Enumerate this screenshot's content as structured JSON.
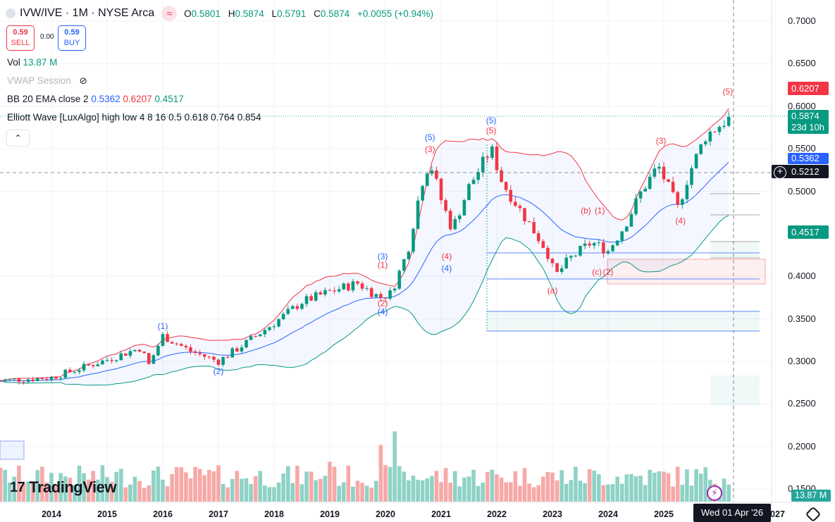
{
  "header": {
    "symbol": "IVW/IVE · 1M · NYSE Arca",
    "open_label": "O",
    "open": "0.5801",
    "high_label": "H",
    "high": "0.5874",
    "low_label": "L",
    "low": "0.5791",
    "close_label": "C",
    "close": "0.5874",
    "change": "+0.0055 (+0.94%)"
  },
  "trade": {
    "sell_price": "0.59",
    "sell_label": "SELL",
    "spread": "0.00",
    "buy_price": "0.59",
    "buy_label": "BUY"
  },
  "legend": {
    "vol_label": "Vol",
    "vol_value": "13.87 M",
    "vwap_label": "VWAP Session",
    "bb_label": "BB 20 EMA close 2",
    "bb_basis": "0.5362",
    "bb_upper": "0.6207",
    "bb_lower": "0.4517",
    "elliott_label": "Elliott Wave [LuxAlgo] high low 4 8 16 0.5 0.618 0.764 0.854"
  },
  "price_axis": {
    "ticks": [
      "0.7000",
      "0.6500",
      "0.6000",
      "0.5500",
      "0.5000",
      "0.4000",
      "0.3500",
      "0.3000",
      "0.2500",
      "0.2000",
      "0.1500"
    ],
    "tags": {
      "upper": "0.6207",
      "last": "0.5874",
      "countdown": "23d 10h",
      "basis": "0.5362",
      "crosshair": "0.5212",
      "lower": "0.4517",
      "volume": "13.87 M"
    }
  },
  "time_axis": {
    "ticks": [
      "2014",
      "2015",
      "2016",
      "2017",
      "2018",
      "2019",
      "2020",
      "2021",
      "2022",
      "2023",
      "2024",
      "2025",
      "2027"
    ],
    "crosshair": "Wed 01 Apr '26"
  },
  "brand": "TradingView",
  "colors": {
    "up": "#089981",
    "down": "#f23645",
    "basis": "#2962ff",
    "upper": "#f23645",
    "lower": "#089981",
    "vol_up": "#8fd2c6",
    "vol_down": "#f7a9a7"
  },
  "chart_data": {
    "type": "candlestick",
    "interval": "1M",
    "approx_close_anchors": [
      [
        "2013.0",
        0.277
      ],
      [
        "2014.0",
        0.281
      ],
      [
        "2015.0",
        0.302
      ],
      [
        "2015.6",
        0.316
      ],
      [
        "2015.75",
        0.296
      ],
      [
        "2016.0",
        0.33
      ],
      [
        "2016.5",
        0.312
      ],
      [
        "2017.0",
        0.3
      ],
      [
        "2017.5",
        0.322
      ],
      [
        "2018.0",
        0.345
      ],
      [
        "2018.5",
        0.37
      ],
      [
        "2019.0",
        0.382
      ],
      [
        "2019.5",
        0.392
      ],
      [
        "2019.9",
        0.375
      ],
      [
        "2020.1",
        0.38
      ],
      [
        "2020.4",
        0.43
      ],
      [
        "2020.65",
        0.51
      ],
      [
        "2020.8",
        0.535
      ],
      [
        "2021.0",
        0.49
      ],
      [
        "2021.2",
        0.455
      ],
      [
        "2021.5",
        0.505
      ],
      [
        "2021.9",
        0.55
      ],
      [
        "2022.1",
        0.51
      ],
      [
        "2022.5",
        0.47
      ],
      [
        "2022.9",
        0.43
      ],
      [
        "2023.05",
        0.4
      ],
      [
        "2023.3",
        0.42
      ],
      [
        "2023.7",
        0.44
      ],
      [
        "2024.0",
        0.43
      ],
      [
        "2024.3",
        0.46
      ],
      [
        "2024.6",
        0.5
      ],
      [
        "2024.9",
        0.53
      ],
      [
        "2025.25",
        0.48
      ],
      [
        "2025.45",
        0.52
      ],
      [
        "2025.75",
        0.565
      ],
      [
        "2026.2",
        0.5874
      ]
    ],
    "waves": [
      {
        "label": "(1)",
        "date": 2016.0,
        "price": 0.338,
        "color": "#2962ff"
      },
      {
        "label": "(2)",
        "date": 2017.0,
        "price": 0.285,
        "color": "#2962ff"
      },
      {
        "label": "(3)",
        "date": 2019.95,
        "price": 0.42,
        "color": "#2962ff"
      },
      {
        "label": "(1)",
        "date": 2019.95,
        "price": 0.41,
        "color": "#f23645"
      },
      {
        "label": "(2)",
        "date": 2019.95,
        "price": 0.365,
        "color": "#f23645"
      },
      {
        "label": "(4)",
        "date": 2019.95,
        "price": 0.355,
        "color": "#2962ff"
      },
      {
        "label": "(5)",
        "date": 2020.8,
        "price": 0.56,
        "color": "#2962ff"
      },
      {
        "label": "(3)",
        "date": 2020.8,
        "price": 0.546,
        "color": "#f23645"
      },
      {
        "label": "(4)",
        "date": 2021.1,
        "price": 0.42,
        "color": "#f23645"
      },
      {
        "label": "(4)",
        "date": 2021.1,
        "price": 0.406,
        "color": "#2962ff"
      },
      {
        "label": "(5)",
        "date": 2021.9,
        "price": 0.58,
        "color": "#2962ff"
      },
      {
        "label": "(5)",
        "date": 2021.9,
        "price": 0.568,
        "color": "#f23645"
      },
      {
        "label": "(a)",
        "date": 2023.0,
        "price": 0.38,
        "color": "#f23645"
      },
      {
        "label": "(b)",
        "date": 2023.6,
        "price": 0.474,
        "color": "#f23645"
      },
      {
        "label": "(1)",
        "date": 2023.85,
        "price": 0.474,
        "color": "#f23645"
      },
      {
        "label": "(c)",
        "date": 2023.8,
        "price": 0.402,
        "color": "#f23645"
      },
      {
        "label": "(2)",
        "date": 2024.0,
        "price": 0.402,
        "color": "#f23645"
      },
      {
        "label": "(3)",
        "date": 2024.95,
        "price": 0.556,
        "color": "#f23645"
      },
      {
        "label": "(4)",
        "date": 2025.3,
        "price": 0.462,
        "color": "#f23645"
      },
      {
        "label": "(5)",
        "date": 2026.15,
        "price": 0.614,
        "color": "#f23645"
      }
    ]
  }
}
